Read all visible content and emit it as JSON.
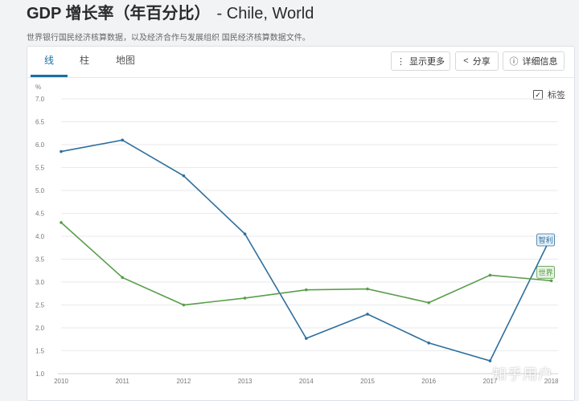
{
  "page": {
    "title": "GDP 增长率（年百分比）",
    "subtitle": "- Chile, World",
    "description": "世界银行国民经济核算数据，以及经济合作与发展组织 国民经济核算数据文件。"
  },
  "tabs": [
    {
      "label": "线",
      "active": true
    },
    {
      "label": "柱",
      "active": false
    },
    {
      "label": "地图",
      "active": false
    }
  ],
  "toolbar": {
    "more_label": "显示更多",
    "share_label": "分享",
    "details_label": "详细信息"
  },
  "legend_toggle": {
    "label": "标签",
    "checked": true
  },
  "watermark": "知乎用户",
  "colors": {
    "chile": "#2e6f9e",
    "world": "#5a9e4b",
    "accent": "#1a6fa5"
  },
  "chart_data": {
    "type": "line",
    "ylabel": "%",
    "ylim": [
      1.0,
      7.0
    ],
    "yticks": [
      "1.0",
      "1.5",
      "2.0",
      "2.5",
      "3.0",
      "3.5",
      "4.0",
      "4.5",
      "5.0",
      "5.5",
      "6.0",
      "6.5",
      "7.0"
    ],
    "x": [
      "2010",
      "2011",
      "2012",
      "2013",
      "2014",
      "2015",
      "2016",
      "2017",
      "2018"
    ],
    "grid": true,
    "series": [
      {
        "name": "智利",
        "color": "#2e6f9e",
        "values": [
          5.85,
          6.1,
          5.32,
          4.05,
          1.77,
          2.3,
          1.67,
          1.28,
          4.0
        ]
      },
      {
        "name": "世界",
        "color": "#5a9e4b",
        "values": [
          4.3,
          3.1,
          2.5,
          2.65,
          2.83,
          2.85,
          2.55,
          3.15,
          3.03
        ]
      }
    ]
  }
}
